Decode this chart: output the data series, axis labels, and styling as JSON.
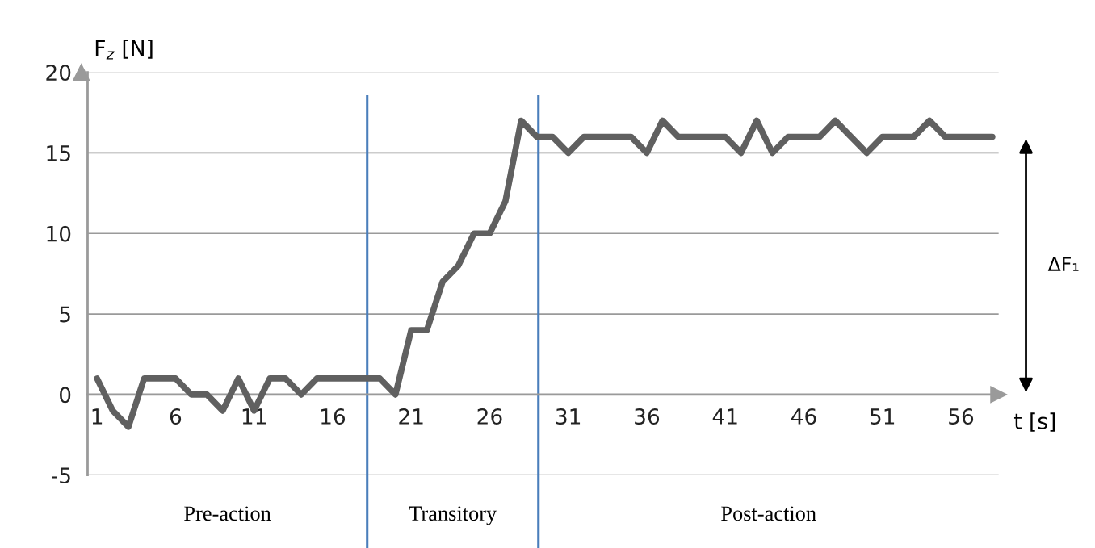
{
  "chart_data": {
    "type": "line",
    "x": [
      1,
      2,
      3,
      4,
      5,
      6,
      7,
      8,
      9,
      10,
      11,
      12,
      13,
      14,
      15,
      16,
      17,
      18,
      19,
      20,
      21,
      22,
      23,
      24,
      25,
      26,
      27,
      28,
      29,
      30,
      31,
      32,
      33,
      34,
      35,
      36,
      37,
      38,
      39,
      40,
      41,
      42,
      43,
      44,
      45,
      46,
      47,
      48,
      49,
      50,
      51,
      52,
      53,
      54,
      55,
      56,
      57,
      58
    ],
    "series": [
      {
        "color": "#606060",
        "values": [
          1,
          -1,
          -2,
          1,
          1,
          1,
          0,
          0,
          -1,
          1,
          -1,
          1,
          1,
          0,
          1,
          1,
          1,
          1,
          1,
          0,
          4,
          4,
          7,
          8,
          10,
          10,
          12,
          17,
          16,
          16,
          15,
          16,
          16,
          16,
          16,
          15,
          17,
          16,
          16,
          16,
          16,
          15,
          17,
          15,
          16,
          16,
          16,
          17,
          16,
          15,
          16,
          16,
          16,
          17,
          16,
          16,
          16,
          16
        ]
      }
    ],
    "xlim": [
      0.4,
      58.4
    ],
    "xticks": [
      1,
      6,
      11,
      16,
      21,
      26,
      31,
      36,
      41,
      46,
      51,
      56
    ],
    "ylim": [
      -5,
      20
    ],
    "yticks": [
      -5,
      0,
      5,
      10,
      15,
      20
    ],
    "xlabel": "t [s]",
    "ylabel": "F$_{z}$ [N]",
    "grid": "y",
    "marker": "none",
    "line_style": "solid",
    "legend": false,
    "ref_lines": [
      {
        "axis": "x",
        "value": 18.2,
        "color": "#4a7ebb"
      },
      {
        "axis": "x",
        "value": 29.1,
        "color": "#4a7ebb"
      }
    ],
    "annotations": [
      "Pre-action",
      "Transitory",
      "Post-action",
      "ΔF₁"
    ]
  }
}
